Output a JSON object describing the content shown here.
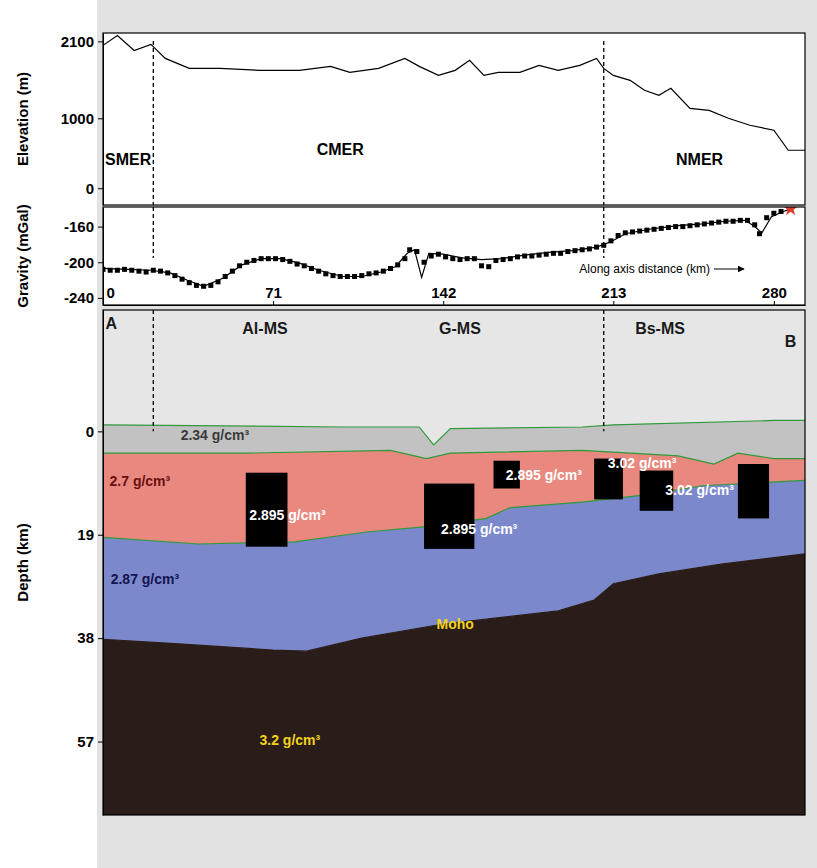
{
  "chart_data": [
    {
      "type": "line",
      "ylabel": "Elevation (m)",
      "x": [
        0,
        6,
        13,
        20,
        26,
        36,
        49,
        65,
        82,
        95,
        103,
        115,
        126,
        132,
        140,
        147,
        153,
        159,
        165,
        174,
        182,
        190,
        199,
        206,
        209,
        213,
        220,
        226,
        232,
        237,
        245,
        253,
        261,
        270,
        280,
        286,
        293
      ],
      "values": [
        2043,
        2185,
        1970,
        2057,
        1857,
        1714,
        1714,
        1686,
        1686,
        1743,
        1657,
        1714,
        1857,
        1743,
        1614,
        1686,
        1829,
        1614,
        1657,
        1657,
        1757,
        1686,
        1757,
        1857,
        1714,
        1614,
        1543,
        1400,
        1329,
        1429,
        1143,
        1114,
        1000,
        900,
        829,
        543,
        543
      ],
      "color": "#000000",
      "xlim": [
        0,
        293
      ],
      "ylim": [
        -240,
        2220
      ],
      "yticks": [
        0,
        1000,
        2100
      ],
      "tick_labels": "y",
      "boundaries": [
        21,
        209
      ],
      "region_labels": [
        {
          "text": "SMER",
          "x": 10.5,
          "y": 330,
          "color": "#000000"
        },
        {
          "text": "CMER",
          "x": 99,
          "y": 470,
          "color": "#000000"
        },
        {
          "text": "NMER",
          "x": 249,
          "y": 330,
          "color": "#000000"
        }
      ]
    },
    {
      "type": "scatter",
      "ylabel": "Gravity (mGal)",
      "xlabel": "Along axis distance (km)",
      "xlim": [
        0,
        293
      ],
      "ylim": [
        -248,
        -138
      ],
      "xticks": [
        0,
        71,
        142,
        213,
        280
      ],
      "yticks": [
        -240,
        -200,
        -160
      ],
      "series": [
        {
          "type": "scatter",
          "marker": "square",
          "color": "#000000",
          "x": [
            0,
            3,
            6,
            9,
            12,
            15,
            18,
            21,
            24,
            27,
            30,
            33,
            36,
            39,
            42,
            45,
            48,
            51,
            54,
            57,
            60,
            63,
            66,
            69,
            72,
            75,
            78,
            81,
            84,
            87,
            90,
            93,
            96,
            99,
            102,
            105,
            108,
            111,
            114,
            117,
            120,
            123,
            126,
            128,
            131,
            134,
            137,
            140,
            143,
            146,
            149,
            152,
            155,
            158,
            161,
            164,
            167,
            170,
            173,
            176,
            179,
            182,
            185,
            188,
            191,
            194,
            197,
            200,
            203,
            206,
            209,
            212,
            215,
            218,
            221,
            224,
            227,
            230,
            233,
            236,
            239,
            242,
            245,
            248,
            251,
            254,
            257,
            260,
            263,
            266,
            269,
            272,
            274,
            277,
            280,
            283
          ],
          "values": [
            -208,
            -209,
            -209,
            -208,
            -209,
            -210,
            -211,
            -209,
            -210,
            -212,
            -215,
            -219,
            -223,
            -226,
            -227,
            -226,
            -222,
            -216,
            -210,
            -204,
            -200,
            -198,
            -196,
            -196,
            -196,
            -197,
            -199,
            -202,
            -204,
            -207,
            -210,
            -213,
            -215,
            -216,
            -216,
            -216,
            -215,
            -213,
            -212,
            -210,
            -207,
            -203,
            -196,
            -186,
            -188,
            -200,
            -193,
            -191,
            -194,
            -196,
            -197,
            -196,
            -196,
            -204,
            -205,
            -198,
            -197,
            -196,
            -194,
            -193,
            -193,
            -192,
            -191,
            -190,
            -190,
            -188,
            -187,
            -186,
            -185,
            -183,
            -181,
            -176,
            -170,
            -167,
            -166,
            -165,
            -164,
            -163,
            -162,
            -161,
            -160,
            -160,
            -159,
            -158,
            -157,
            -156,
            -155,
            -154,
            -154,
            -153,
            -153,
            -158,
            -168,
            -150,
            -145,
            -143
          ]
        },
        {
          "type": "line",
          "line_style": "solid",
          "color": "#000000",
          "x": [
            0,
            10,
            20,
            28,
            35,
            42,
            50,
            58,
            66,
            74,
            82,
            90,
            100,
            108,
            116,
            122,
            127,
            130,
            133,
            136,
            142,
            150,
            158,
            166,
            176,
            186,
            196,
            206,
            212,
            218,
            228,
            240,
            250,
            260,
            268,
            272,
            275,
            279,
            285,
            288
          ],
          "values": [
            -207,
            -208,
            -209,
            -212,
            -220,
            -227,
            -218,
            -203,
            -196,
            -196,
            -201,
            -209,
            -216,
            -216,
            -211,
            -205,
            -190,
            -186,
            -217,
            -190,
            -191,
            -195,
            -197,
            -196,
            -192,
            -189,
            -187,
            -183,
            -177,
            -168,
            -163,
            -159,
            -157,
            -154,
            -153,
            -160,
            -167,
            -149,
            -142,
            -140
          ]
        },
        {
          "type": "scatter",
          "marker": "star",
          "color": "#e03a2e",
          "x": [
            287
          ],
          "values": [
            -140
          ]
        }
      ]
    },
    {
      "type": "area",
      "ylabel": "Depth (km)",
      "xlim": [
        0,
        293
      ],
      "ylim": [
        -22.3,
        70.5
      ],
      "yticks": [
        0,
        19,
        38,
        57
      ],
      "tick_labels": "y",
      "interfaces": [
        {
          "x": [
            0,
            100,
            132,
            138,
            145,
            200,
            213,
            280,
            293
          ],
          "depth": [
            -1.2,
            -0.8,
            -0.8,
            2.5,
            -0.5,
            -0.8,
            -1.2,
            -2,
            -2
          ],
          "color": "#2e9a3a"
        },
        {
          "x": [
            0,
            60,
            120,
            135,
            145,
            200,
            240,
            255,
            265,
            280,
            293
          ],
          "depth": [
            4,
            4,
            3.5,
            5,
            4,
            3.5,
            4.5,
            6,
            4,
            5,
            5
          ],
          "color": "#2e9a3a"
        },
        {
          "x": [
            0,
            40,
            80,
            110,
            135,
            160,
            170,
            200,
            230,
            250,
            293
          ],
          "depth": [
            19.5,
            20.7,
            20.3,
            18.5,
            17.5,
            16,
            14,
            13,
            11.5,
            10,
            9
          ],
          "color": "#2e9a3a"
        },
        {
          "x": [
            0,
            30,
            71,
            85,
            108,
            142,
            190,
            205,
            213,
            232,
            258,
            293
          ],
          "depth": [
            38.2,
            39,
            40.2,
            40.4,
            38,
            35.4,
            33,
            31,
            28,
            26.2,
            24.4,
            22.5
          ],
          "color": "#2a1d19"
        },
        {
          "x": [
            0,
            293
          ],
          "depth": [
            70.5,
            70.5
          ],
          "color": "#2a1d19"
        }
      ],
      "colors": [
        "#c2c2c2",
        "#e8887e",
        "#7c88cc",
        "#2a1d19"
      ],
      "bodies": [
        {
          "x": [
            59.6,
            77
          ],
          "depth": [
            7.6,
            21.2
          ],
          "color": "#000000"
        },
        {
          "x": [
            134,
            155
          ],
          "depth": [
            9.6,
            21.6
          ],
          "color": "#000000"
        },
        {
          "x": [
            163,
            174
          ],
          "depth": [
            5.4,
            10.5
          ],
          "color": "#000000"
        },
        {
          "x": [
            205,
            217
          ],
          "depth": [
            5,
            12.5
          ],
          "color": "#000000"
        },
        {
          "x": [
            224,
            238
          ],
          "depth": [
            7.2,
            14.6
          ],
          "color": "#000000"
        },
        {
          "x": [
            265,
            278
          ],
          "depth": [
            6,
            16
          ],
          "color": "#000000"
        }
      ],
      "site_labels": [
        {
          "text": "A",
          "x": 3.5,
          "depth": -19.6,
          "color": "#1a1a1a"
        },
        {
          "text": "Al-MS",
          "x": 67.6,
          "depth": -18.6,
          "color": "#1a1a1a"
        },
        {
          "text": "G-MS",
          "x": 149,
          "depth": -18.6,
          "color": "#1a1a1a"
        },
        {
          "text": "Bs-MS",
          "x": 232.5,
          "depth": -18.6,
          "color": "#1a1a1a"
        },
        {
          "text": "B",
          "x": 287,
          "depth": -16.3,
          "color": "#1a1a1a"
        }
      ],
      "layer_labels": [
        {
          "text": "2.34 g/cm³",
          "x": 46.7,
          "depth": 1.0,
          "color": "#3a3a3a"
        },
        {
          "text": "2.7 g/cm³",
          "x": 15.4,
          "depth": 9.3,
          "color": "#6b1010"
        },
        {
          "text": "2.87 g/cm³",
          "x": 17.5,
          "depth": 27.3,
          "color": "#141450"
        },
        {
          "text": "Moho",
          "x": 147,
          "depth": 35.6,
          "color": "#f2d21e"
        },
        {
          "text": "3.2 g/cm³",
          "x": 78,
          "depth": 57,
          "color": "#f2d21e"
        }
      ],
      "body_labels": [
        {
          "text": "2.895 g/cm³",
          "x": 77,
          "depth": 15.7,
          "color": "#ffffff"
        },
        {
          "text": "2.895 g/cm³",
          "x": 157,
          "depth": 18.1,
          "color": "#ffffff"
        },
        {
          "text": "2.895 g/cm³",
          "x": 184,
          "depth": 8.2,
          "color": "#ffffff"
        },
        {
          "text": "3.02 g/cm³",
          "x": 225,
          "depth": 6,
          "color": "#ffffff"
        },
        {
          "text": "3.02 g/cm³",
          "x": 249,
          "depth": 11,
          "color": "#ffffff"
        }
      ]
    }
  ]
}
